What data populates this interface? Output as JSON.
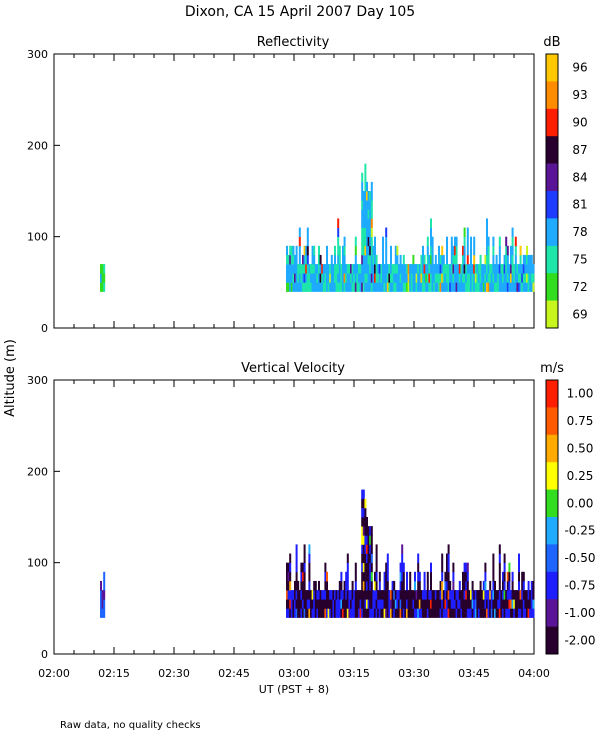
{
  "title": "Dixon, CA 15 April 2007  Day 105",
  "y_axis_label": "Altitude (m)",
  "x_axis_label": "UT  (PST + 8)",
  "footnote": "Raw data, no quality checks",
  "x_ticks": [
    "02:00",
    "02:15",
    "02:30",
    "02:45",
    "03:00",
    "03:15",
    "03:30",
    "03:45",
    "04:00"
  ],
  "chart_data": [
    {
      "type": "heatmap",
      "title": "Reflectivity",
      "xlabel": "UT  (PST + 8)",
      "ylabel": "Altitude (m)",
      "xlim_minutes": [
        0,
        120
      ],
      "ylim": [
        0,
        300
      ],
      "y_ticks": [
        0,
        100,
        200,
        300
      ],
      "colorbar": {
        "unit": "dB",
        "tick_labels": [
          "96",
          "93",
          "90",
          "87",
          "84",
          "81",
          "78",
          "75",
          "72",
          "69"
        ],
        "colors": [
          "#ffc800",
          "#ff8c00",
          "#ff1e00",
          "#28002d",
          "#5a1496",
          "#1e3cff",
          "#1eaaff",
          "#1ee6aa",
          "#32dc1e",
          "#c8f51e"
        ]
      },
      "echoes": [
        {
          "x_start_min": 11.5,
          "x_end_min": 12.8,
          "alt_bottom_m": 40,
          "alt_top_m": 80,
          "dominant_color": "#1ee6aa",
          "secondary_color": "#32dc1e"
        },
        {
          "x_start_min": 58,
          "x_end_min": 120,
          "alt_bottom_m": 40,
          "alt_top_m": 100,
          "dominant_color": "#1eaaff",
          "secondary_color": "#1ee6aa",
          "peak_min": 78,
          "peak_alt_m": 180
        }
      ]
    },
    {
      "type": "heatmap",
      "title": "Vertical Velocity",
      "xlabel": "UT  (PST + 8)",
      "ylabel": "Altitude (m)",
      "xlim_minutes": [
        0,
        120
      ],
      "ylim": [
        0,
        300
      ],
      "y_ticks": [
        0,
        100,
        200,
        300
      ],
      "colorbar": {
        "unit": "m/s",
        "tick_labels": [
          "1.00",
          "0.75",
          "0.50",
          "0.25",
          "0.00",
          "-0.25",
          "-0.50",
          "-0.75",
          "-1.00",
          "-2.00"
        ],
        "colors": [
          "#ff1e00",
          "#ff5a00",
          "#ffaa00",
          "#ffff00",
          "#32dc1e",
          "#1eaaff",
          "#1e64ff",
          "#1e1eff",
          "#5a1496",
          "#28002d"
        ]
      },
      "echoes": [
        {
          "x_start_min": 11.5,
          "x_end_min": 12.8,
          "alt_bottom_m": 40,
          "alt_top_m": 80,
          "dominant_color": "#1e64ff",
          "secondary_color": "#5a1496"
        },
        {
          "x_start_min": 58,
          "x_end_min": 120,
          "alt_bottom_m": 40,
          "alt_top_m": 100,
          "dominant_color": "#28002d",
          "secondary_color": "#1e1eff",
          "peak_min": 78,
          "peak_alt_m": 180
        }
      ]
    }
  ]
}
